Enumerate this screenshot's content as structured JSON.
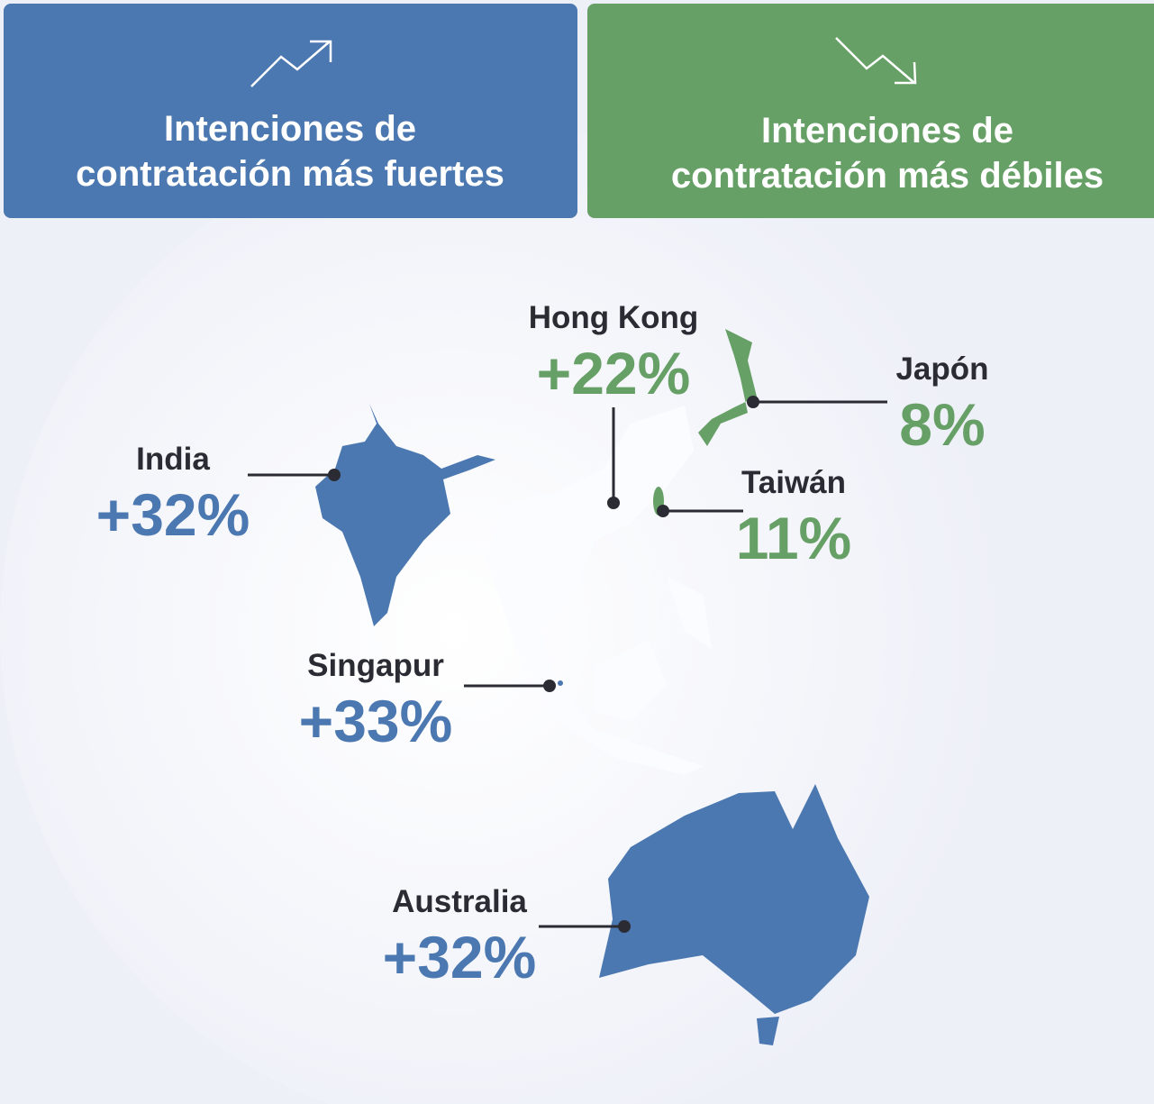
{
  "header": {
    "strong": {
      "lines": [
        "Intenciones de",
        "contratación más fuertes"
      ],
      "color": "#4b78b0"
    },
    "weak": {
      "lines": [
        "Intenciones de",
        "contratación más débiles"
      ],
      "color": "#67a066"
    }
  },
  "regions": [
    {
      "name": "Hong Kong",
      "value": "+22%",
      "color": "#67a066"
    },
    {
      "name": "Japón",
      "value": "8%",
      "color": "#67a066"
    },
    {
      "name": "Taiwán",
      "value": "11%",
      "color": "#67a066"
    },
    {
      "name": "India",
      "value": "+32%",
      "color": "#4b78b0"
    },
    {
      "name": "Singapur",
      "value": "+33%",
      "color": "#4b78b0"
    },
    {
      "name": "Australia",
      "value": "+32%",
      "color": "#4b78b0"
    }
  ]
}
